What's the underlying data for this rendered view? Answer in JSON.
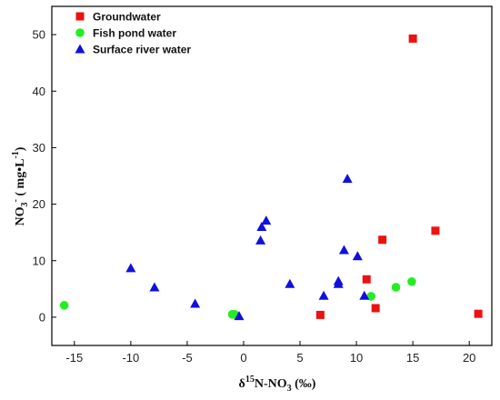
{
  "chart_data": {
    "type": "scatter",
    "title": "",
    "xlabel": "δ15N-NO3 (‰)",
    "xlabel_parts": {
      "delta": "δ",
      "sup": "15",
      "base": "N-NO",
      "sub": "3",
      "unit": " (‰)"
    },
    "ylabel": "NO3- (mg•L-1)",
    "ylabel_parts": {
      "base": "NO",
      "sub": "3",
      "sup": "-",
      "unit_open": " ( mg•L",
      "unit_sup": "-1",
      "unit_close": ")"
    },
    "xlim": [
      -17,
      22
    ],
    "ylim": [
      -5,
      55
    ],
    "x_ticks": [
      -15,
      -10,
      -5,
      0,
      5,
      10,
      15,
      20
    ],
    "x_tick_labels": [
      "-15",
      "-10",
      "-5",
      "0",
      "5",
      "10",
      "15",
      "20"
    ],
    "y_ticks": [
      0,
      10,
      20,
      30,
      40,
      50
    ],
    "y_tick_labels": [
      "0",
      "10",
      "20",
      "30",
      "40",
      "50"
    ],
    "grid": false,
    "legend_position": "top-left",
    "series": [
      {
        "name": "Groundwater",
        "marker": "square",
        "color": "#ee1111",
        "points": [
          [
            15.0,
            49.3
          ],
          [
            17.0,
            15.3
          ],
          [
            12.3,
            13.7
          ],
          [
            10.9,
            6.7
          ],
          [
            11.7,
            1.6
          ],
          [
            6.8,
            0.4
          ],
          [
            20.8,
            0.6
          ]
        ]
      },
      {
        "name": "Fish pond water",
        "marker": "circle",
        "color": "#22ee22",
        "points": [
          [
            -15.9,
            2.1
          ],
          [
            -1.0,
            0.5
          ],
          [
            -0.8,
            0.5
          ],
          [
            11.3,
            3.7
          ],
          [
            13.5,
            5.3
          ],
          [
            14.9,
            6.3
          ]
        ]
      },
      {
        "name": "Surface river water",
        "marker": "triangle",
        "color": "#1010dd",
        "points": [
          [
            9.2,
            24.5
          ],
          [
            2.0,
            17.1
          ],
          [
            1.6,
            16.0
          ],
          [
            1.5,
            13.6
          ],
          [
            8.9,
            11.9
          ],
          [
            10.1,
            10.8
          ],
          [
            -10.0,
            8.7
          ],
          [
            -7.9,
            5.3
          ],
          [
            4.1,
            5.9
          ],
          [
            8.4,
            6.4
          ],
          [
            8.4,
            5.9
          ],
          [
            7.1,
            3.8
          ],
          [
            10.7,
            3.8
          ],
          [
            -4.3,
            2.4
          ],
          [
            -0.4,
            0.2
          ]
        ]
      }
    ]
  }
}
